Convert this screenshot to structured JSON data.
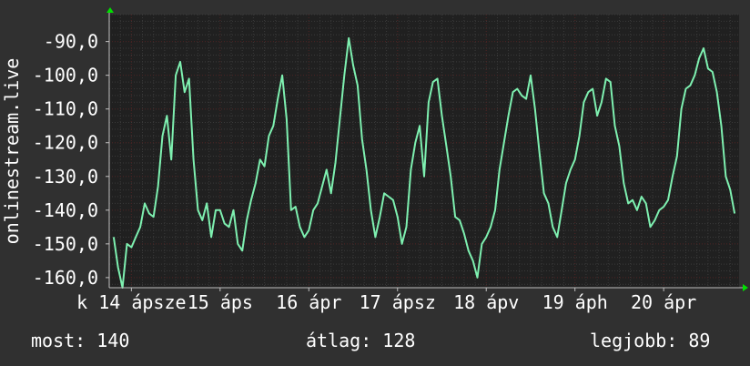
{
  "chart_data": {
    "type": "line",
    "ylabel": "onlinestream.live",
    "ylim": [
      -163,
      -82
    ],
    "y_ticks": [
      -90,
      -100,
      -110,
      -120,
      -130,
      -140,
      -150,
      -160
    ],
    "y_tick_labels": [
      "-90,0",
      "-100,0",
      "-110,0",
      "-120,0",
      "-130,0",
      "-140,0",
      "-150,0",
      "-160,0"
    ],
    "xlim": [
      -0.25,
      6.85
    ],
    "x_ticks": [
      0,
      1,
      2,
      3,
      4,
      5,
      6
    ],
    "x_tick_labels": [
      "k 14 ápsze",
      "15 áps",
      "16 ápr",
      "17 ápsz",
      "18 ápv",
      "19 áph",
      "20 ápr"
    ],
    "grid": true,
    "colors": {
      "background": "#303030",
      "plot_background": "#202020",
      "grid_major": "#4a2020",
      "grid_minor": "#3a3a3a",
      "line": "#7ef0b0",
      "axis_arrow": "#00e000"
    },
    "series": [
      {
        "color": "#7ef0b0",
        "x": [
          -0.2,
          -0.15,
          -0.1,
          -0.05,
          0.0,
          0.05,
          0.1,
          0.15,
          0.2,
          0.25,
          0.3,
          0.35,
          0.4,
          0.45,
          0.5,
          0.55,
          0.6,
          0.65,
          0.7,
          0.75,
          0.8,
          0.85,
          0.9,
          0.95,
          1.0,
          1.05,
          1.1,
          1.15,
          1.2,
          1.25,
          1.3,
          1.35,
          1.4,
          1.45,
          1.5,
          1.55,
          1.6,
          1.65,
          1.7,
          1.75,
          1.8,
          1.85,
          1.9,
          1.95,
          2.0,
          2.05,
          2.1,
          2.15,
          2.2,
          2.25,
          2.3,
          2.35,
          2.4,
          2.45,
          2.5,
          2.55,
          2.6,
          2.65,
          2.7,
          2.75,
          2.8,
          2.85,
          2.9,
          2.95,
          3.0,
          3.05,
          3.1,
          3.15,
          3.2,
          3.25,
          3.3,
          3.35,
          3.4,
          3.45,
          3.5,
          3.55,
          3.6,
          3.65,
          3.7,
          3.75,
          3.8,
          3.85,
          3.9,
          3.95,
          4.0,
          4.05,
          4.1,
          4.15,
          4.2,
          4.25,
          4.3,
          4.35,
          4.4,
          4.45,
          4.5,
          4.55,
          4.6,
          4.65,
          4.7,
          4.75,
          4.8,
          4.85,
          4.9,
          4.95,
          5.0,
          5.05,
          5.1,
          5.15,
          5.2,
          5.25,
          5.3,
          5.35,
          5.4,
          5.45,
          5.5,
          5.55,
          5.6,
          5.65,
          5.7,
          5.75,
          5.8,
          5.85,
          5.9,
          5.95,
          6.0,
          6.05,
          6.1,
          6.15,
          6.2,
          6.25,
          6.3,
          6.35,
          6.4,
          6.45,
          6.5,
          6.55,
          6.6,
          6.65,
          6.7,
          6.75,
          6.8
        ],
        "y": [
          -148,
          -157,
          -163,
          -150,
          -151,
          -148,
          -145,
          -138,
          -141,
          -142,
          -133,
          -118,
          -112,
          -125,
          -100,
          -96,
          -105,
          -101,
          -125,
          -140,
          -143,
          -138,
          -148,
          -140,
          -140,
          -144,
          -145,
          -140,
          -150,
          -152,
          -143,
          -137,
          -132,
          -125,
          -127,
          -118,
          -115,
          -107,
          -100,
          -113,
          -140,
          -139,
          -145,
          -148,
          -146,
          -140,
          -138,
          -133,
          -128,
          -135,
          -126,
          -113,
          -100,
          -89,
          -97,
          -103,
          -119,
          -128,
          -140,
          -148,
          -142,
          -135,
          -136,
          -137,
          -142,
          -150,
          -145,
          -128,
          -120,
          -115,
          -130,
          -108,
          -102,
          -101,
          -112,
          -121,
          -130,
          -142,
          -143,
          -147,
          -152,
          -155,
          -160,
          -150,
          -148,
          -145,
          -140,
          -128,
          -120,
          -112,
          -105,
          -104,
          -106,
          -107,
          -100,
          -110,
          -123,
          -135,
          -138,
          -145,
          -148,
          -140,
          -132,
          -128,
          -125,
          -118,
          -108,
          -105,
          -104,
          -112,
          -108,
          -101,
          -102,
          -115,
          -121,
          -132,
          -138,
          -137,
          -140,
          -136,
          -138,
          -145,
          -143,
          -140,
          -139,
          -137,
          -130,
          -124,
          -110,
          -104,
          -103,
          -100,
          -95,
          -92,
          -98,
          -99,
          -105,
          -115,
          -130,
          -134,
          -141
        ]
      }
    ]
  },
  "stats": {
    "most": "most: 140",
    "atlag": "átlag: 128",
    "legjobb": "legjobb: 89"
  }
}
